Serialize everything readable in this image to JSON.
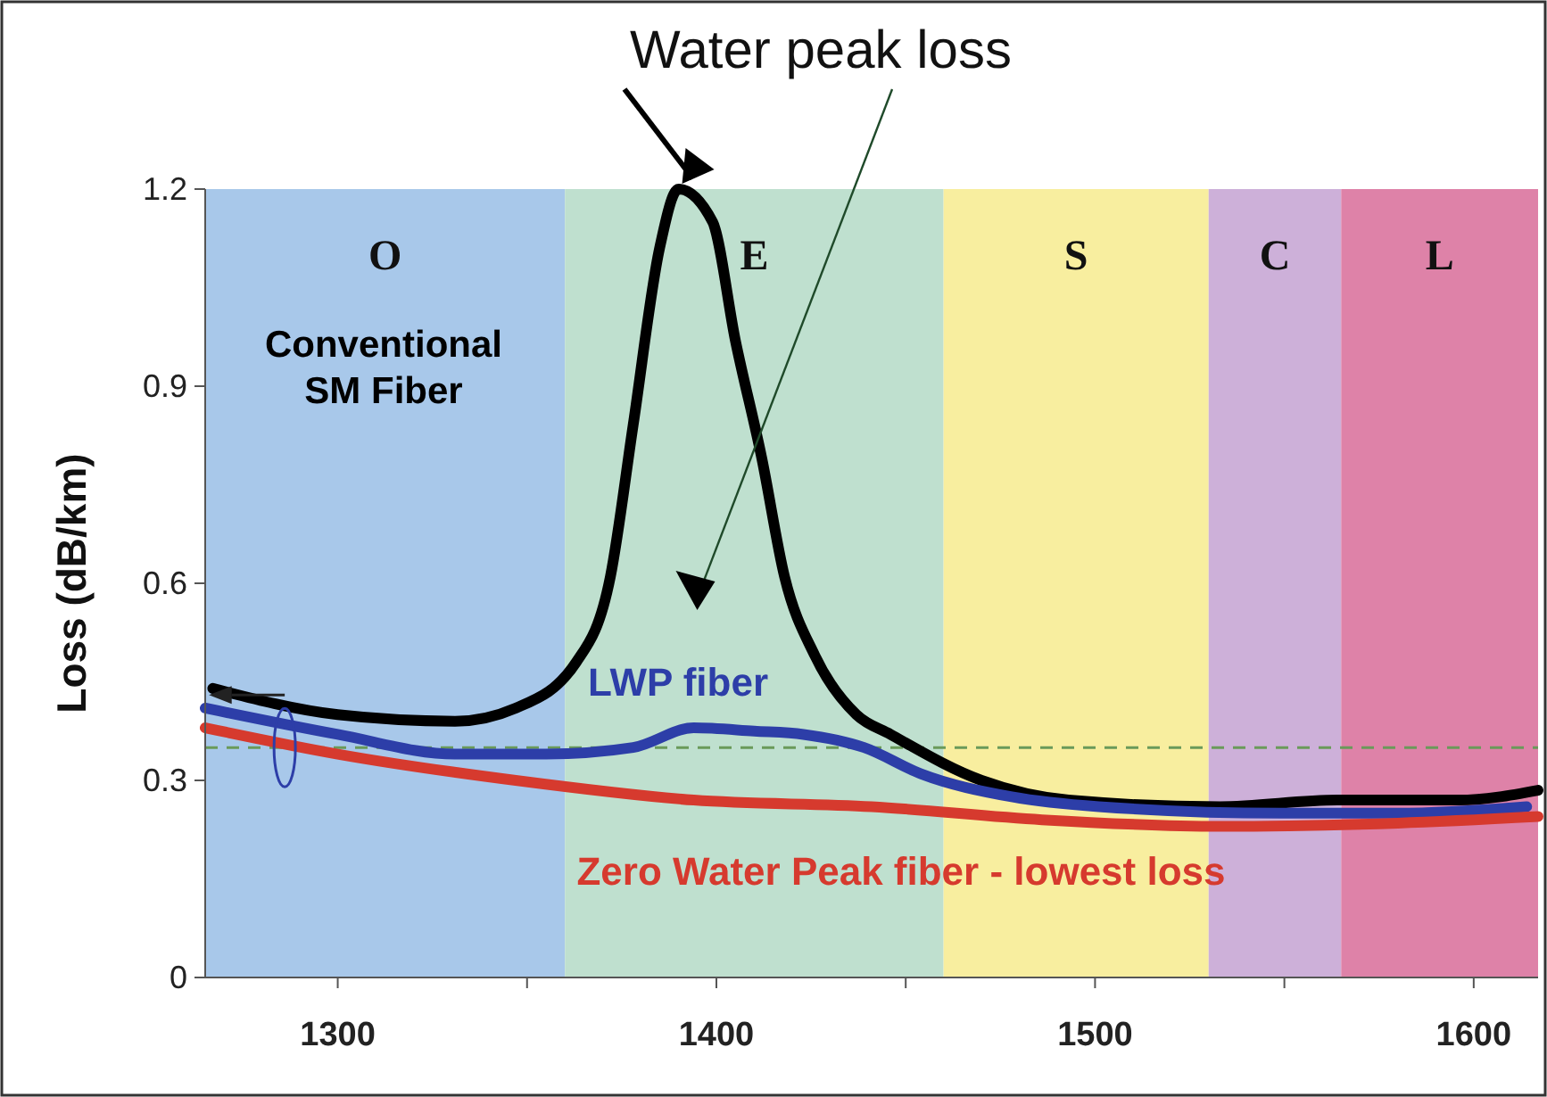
{
  "chart_data": {
    "type": "line",
    "title": "Water peak loss",
    "ylabel": "Loss (dB/km)",
    "xlim": [
      1265,
      1617
    ],
    "xticks": [
      1300,
      {
        "value": 1350,
        "label": null
      },
      1400,
      {
        "value": 1450,
        "label": null
      },
      1500,
      {
        "value": 1550,
        "label": null
      },
      1600
    ],
    "ylim": [
      0,
      1.2
    ],
    "yticks": [
      0,
      0.3,
      0.6,
      0.9,
      1.2
    ],
    "grid": false,
    "legend": false,
    "marker": "none",
    "line_style": "solid",
    "bands": [
      {
        "axis": "x",
        "from": 1265,
        "to": 1360,
        "label": "O",
        "color": "#a8c8ea"
      },
      {
        "axis": "x",
        "from": 1360,
        "to": 1460,
        "label": "E",
        "color": "#bfe0cf"
      },
      {
        "axis": "x",
        "from": 1460,
        "to": 1530,
        "label": "S",
        "color": "#f8ee9f"
      },
      {
        "axis": "x",
        "from": 1530,
        "to": 1565,
        "label": "C",
        "color": "#cdb0d9"
      },
      {
        "axis": "x",
        "from": 1565,
        "to": 1617,
        "label": "L",
        "color": "#de82a8"
      }
    ],
    "ref_lines": [
      {
        "axis": "y",
        "value": 0.35,
        "color": "#6a9a5a",
        "line_style": "dashed"
      }
    ],
    "series": [
      {
        "name": "Conventional SM Fiber",
        "color": "#000000",
        "x": [
          1267,
          1300,
          1331,
          1347,
          1363,
          1372,
          1378,
          1385,
          1390,
          1399,
          1405,
          1412,
          1418,
          1426,
          1437,
          1446,
          1470,
          1493,
          1533,
          1564,
          1596,
          1617
        ],
        "values": [
          0.44,
          0.4,
          0.39,
          0.41,
          0.48,
          0.61,
          0.84,
          1.11,
          1.2,
          1.15,
          0.97,
          0.79,
          0.61,
          0.49,
          0.4,
          0.37,
          0.3,
          0.27,
          0.26,
          0.27,
          0.27,
          0.285
        ]
      },
      {
        "name": "LWP fiber",
        "color": "#2d3ea8",
        "x": [
          1265,
          1300,
          1331,
          1355,
          1378,
          1394,
          1410,
          1423,
          1439,
          1454,
          1478,
          1501,
          1549,
          1580,
          1614
        ],
        "values": [
          0.41,
          0.37,
          0.34,
          0.34,
          0.35,
          0.38,
          0.375,
          0.37,
          0.35,
          0.31,
          0.275,
          0.26,
          0.25,
          0.25,
          0.26
        ]
      },
      {
        "name": "Zero Water Peak fiber - lowest loss",
        "color": "#d63a2e",
        "x": [
          1265,
          1300,
          1347,
          1394,
          1441,
          1486,
          1533,
          1580,
          1617
        ],
        "values": [
          0.38,
          0.34,
          0.3,
          0.27,
          0.26,
          0.24,
          0.23,
          0.235,
          0.245
        ]
      }
    ]
  }
}
